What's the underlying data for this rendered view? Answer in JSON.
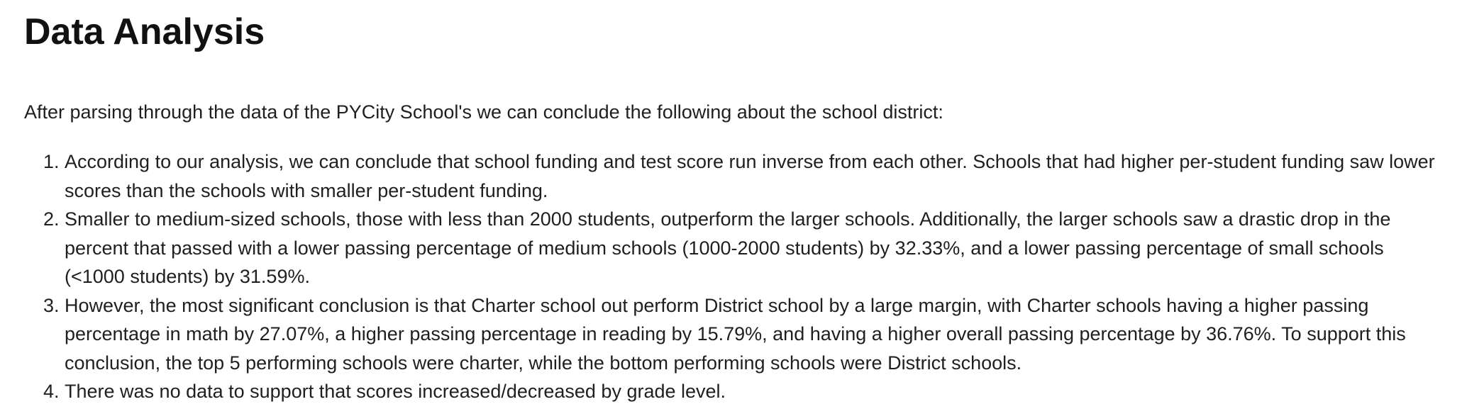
{
  "title": "Data Analysis",
  "intro": "After parsing through the data of the PYCity School's we can conclude the following about the school district:",
  "findings": [
    "According to our analysis, we can conclude that school funding and test score run inverse from each other. Schools that had higher per-student funding saw lower scores than the schools with smaller per-student funding.",
    "Smaller to medium-sized schools, those with less than 2000 students, outperform the larger schools. Additionally, the larger schools saw a drastic drop in the percent that passed with a lower passing percentage of medium schools (1000-2000 students) by 32.33%, and a lower passing percentage of small schools (<1000 students) by 31.59%.",
    "However, the most significant conclusion is that Charter school out perform District school by a large margin, with Charter schools having a higher passing percentage in math by 27.07%, a higher passing percentage in reading by 15.79%, and having a higher overall passing percentage by 36.76%. To support this conclusion, the top 5 performing schools were charter, while the bottom performing schools were District schools.",
    "There was no data to support that scores increased/decreased by grade level."
  ]
}
